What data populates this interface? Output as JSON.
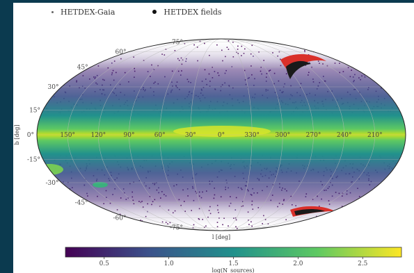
{
  "legend": {
    "entries": [
      {
        "label": "HETDEX-Gaia",
        "marker": "small-dot",
        "color": "#666666"
      },
      {
        "label": "HETDEX fields",
        "marker": "large-dot",
        "color": "#111111"
      }
    ]
  },
  "chart_data": {
    "type": "heatmap",
    "projection": "mollweide",
    "title": "",
    "xlabel": "l [deg]",
    "ylabel": "b [deg]",
    "colorbar": {
      "label": "log(N_sources)",
      "ticks": [
        "0.5",
        "1.0",
        "1.5",
        "2.0",
        "2.5"
      ],
      "range": [
        0.2,
        2.8
      ],
      "colormap": [
        "#440154",
        "#3b528b",
        "#21918c",
        "#5ec962",
        "#fde725"
      ]
    },
    "longitude_ticks": [
      "150°",
      "120°",
      "90°",
      "60°",
      "30°",
      "0°",
      "330°",
      "300°",
      "270°",
      "240°",
      "210°"
    ],
    "latitude_ticks": [
      "75°",
      "60°",
      "45°",
      "30°",
      "15°",
      "0°",
      "-15°",
      "-30°",
      "-45°",
      "-60°",
      "-75°"
    ],
    "overlays": [
      {
        "name": "HETDEX fields (north)",
        "color": "#d9302a"
      },
      {
        "name": "HETDEX fields (south)",
        "color": "#d9302a"
      }
    ]
  }
}
